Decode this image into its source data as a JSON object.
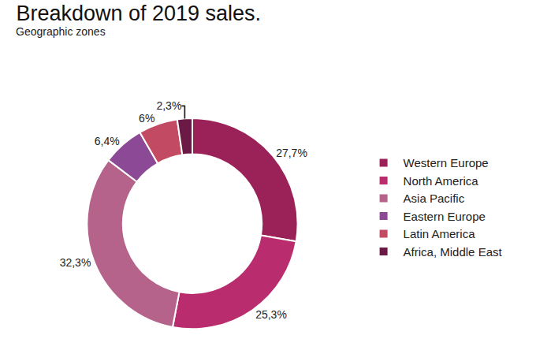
{
  "chart_data": {
    "type": "pie",
    "title": "Breakdown of 2019 sales.",
    "subtitle": "Geographic zones",
    "categories": [
      "Western Europe",
      "North America",
      "Asia Pacific",
      "Eastern Europe",
      "Latin America",
      "Africa, Middle East"
    ],
    "values": [
      27.7,
      25.3,
      32.3,
      6.4,
      6,
      2.3
    ],
    "value_labels": [
      "27,7%",
      "25,3%",
      "32,3%",
      "6,4%",
      "6%",
      "2,3%"
    ],
    "colors": [
      "#9b2159",
      "#b92d6e",
      "#b5638a",
      "#8c4a96",
      "#c24a62",
      "#6b1a45"
    ],
    "data_labels": true,
    "legend": "right"
  }
}
